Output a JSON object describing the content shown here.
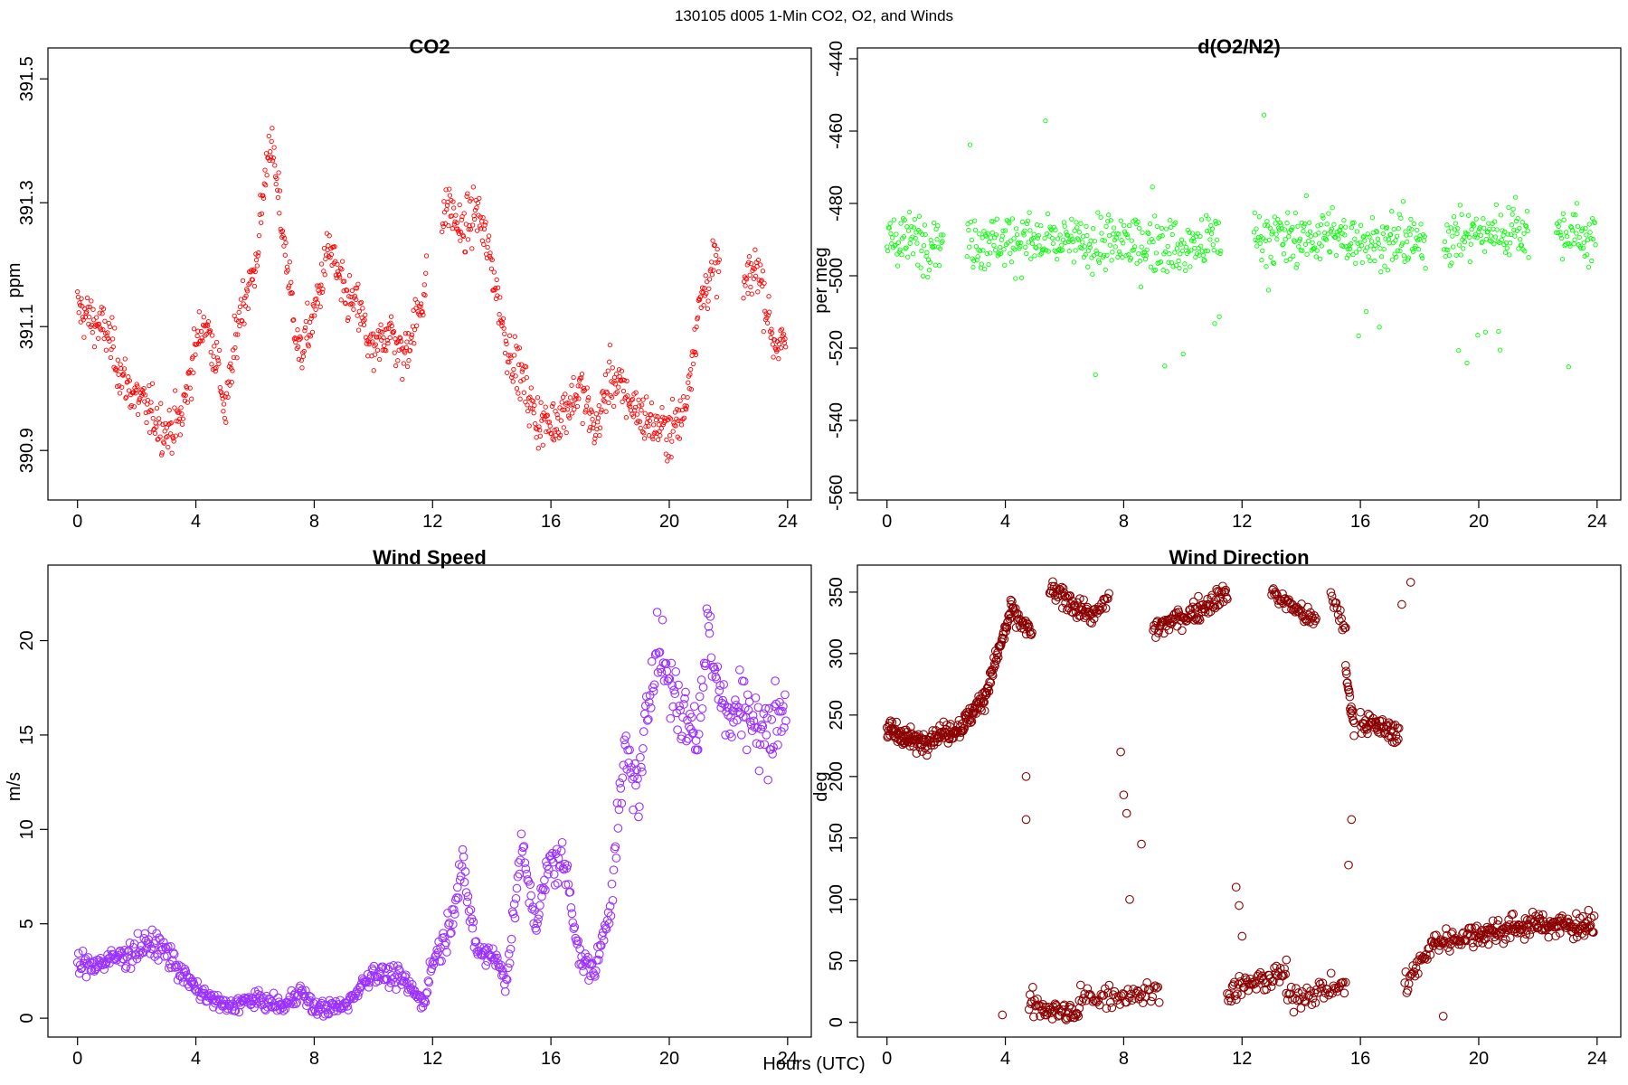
{
  "figure": {
    "suptitle": "130105   d005   1-Min CO2, O2, and Winds",
    "xlabel": "Hours (UTC)"
  },
  "chart_data": [
    {
      "id": "co2",
      "type": "scatter",
      "title": "CO2",
      "ylabel": "ppm",
      "color": "#ff0000",
      "marker_size": "small",
      "xlim": [
        -1,
        24.8
      ],
      "ylim": [
        390.82,
        391.55
      ],
      "xticks": [
        0,
        4,
        8,
        12,
        16,
        20,
        24
      ],
      "yticks": [
        390.9,
        391.1,
        391.3,
        391.5
      ],
      "ytick_labels": [
        "390.9",
        "391.1",
        "391.3",
        "391.5"
      ],
      "keypoints": [
        [
          0,
          391.13
        ],
        [
          0.5,
          391.11
        ],
        [
          1,
          391.09
        ],
        [
          1.5,
          391.02
        ],
        [
          1.9,
          390.99
        ],
        [
          2.5,
          390.96
        ],
        [
          3.0,
          390.93
        ],
        [
          3.5,
          390.95
        ],
        [
          4.0,
          391.07
        ],
        [
          4.3,
          391.11
        ],
        [
          4.7,
          391.05
        ],
        [
          5.0,
          390.96
        ],
        [
          5.5,
          391.13
        ],
        [
          6.0,
          391.19
        ],
        [
          6.5,
          391.41
        ],
        [
          7.5,
          391.05
        ],
        [
          8.0,
          391.12
        ],
        [
          8.5,
          391.23
        ],
        [
          9.0,
          391.15
        ],
        [
          9.5,
          391.13
        ],
        [
          10.0,
          391.05
        ],
        [
          10.5,
          391.1
        ],
        [
          11.0,
          391.05
        ],
        [
          11.5,
          391.12
        ],
        [
          12.5,
          391.3
        ],
        [
          13.0,
          391.25
        ],
        [
          13.5,
          391.29
        ],
        [
          14.0,
          391.2
        ],
        [
          14.5,
          391.07
        ],
        [
          15.0,
          391.02
        ],
        [
          15.5,
          390.95
        ],
        [
          16.0,
          390.94
        ],
        [
          16.5,
          390.97
        ],
        [
          17.0,
          391.0
        ],
        [
          17.5,
          390.93
        ],
        [
          18.0,
          391.02
        ],
        [
          19.0,
          390.96
        ],
        [
          19.5,
          390.94
        ],
        [
          20.0,
          390.93
        ],
        [
          20.5,
          390.96
        ],
        [
          21.0,
          391.13
        ],
        [
          21.5,
          391.2
        ],
        [
          22.5,
          391.16
        ],
        [
          23.0,
          391.2
        ],
        [
          23.5,
          391.08
        ],
        [
          24.0,
          391.06
        ]
      ],
      "gaps": [
        [
          11.8,
          12.3
        ],
        [
          21.7,
          22.5
        ]
      ]
    },
    {
      "id": "o2",
      "type": "scatter",
      "title": "d(O2/N2)",
      "ylabel": "per meg",
      "color": "#00ff00",
      "marker_size": "small",
      "xlim": [
        -1,
        24.8
      ],
      "ylim": [
        -562,
        -437
      ],
      "xticks": [
        0,
        4,
        8,
        12,
        16,
        20,
        24
      ],
      "yticks": [
        -560,
        -540,
        -520,
        -500,
        -480,
        -460,
        -440
      ],
      "ytick_labels": [
        "-560",
        "-540",
        "-520",
        "-500",
        "-480",
        "-460",
        "-440"
      ],
      "keypoints": [
        [
          0,
          -490
        ],
        [
          2,
          -490
        ],
        [
          4,
          -490
        ],
        [
          6,
          -491
        ],
        [
          8,
          -491
        ],
        [
          10,
          -492
        ],
        [
          12,
          -489
        ],
        [
          14,
          -489
        ],
        [
          16,
          -490
        ],
        [
          18,
          -491
        ],
        [
          20,
          -488
        ],
        [
          22,
          -487
        ],
        [
          24,
          -490
        ]
      ],
      "gaps": [
        [
          1.9,
          2.7
        ],
        [
          11.3,
          12.4
        ],
        [
          18.2,
          18.8
        ],
        [
          21.7,
          22.6
        ]
      ]
    },
    {
      "id": "ws",
      "type": "scatter",
      "title": "Wind Speed",
      "ylabel": "m/s",
      "color": "#9b30ff",
      "marker_size": "large",
      "xlim": [
        -1,
        24.8
      ],
      "ylim": [
        -1,
        24
      ],
      "xticks": [
        0,
        4,
        8,
        12,
        16,
        20,
        24
      ],
      "yticks": [
        0,
        5,
        10,
        15,
        20
      ],
      "ytick_labels": [
        "0",
        "5",
        "10",
        "15",
        "20"
      ],
      "keypoints": [
        [
          0,
          2.8
        ],
        [
          1,
          3.0
        ],
        [
          2,
          3.6
        ],
        [
          2.5,
          4.0
        ],
        [
          3,
          3.5
        ],
        [
          3.5,
          2.5
        ],
        [
          4,
          1.5
        ],
        [
          5,
          0.6
        ],
        [
          6,
          1.0
        ],
        [
          7,
          0.6
        ],
        [
          7.5,
          1.5
        ],
        [
          8,
          0.5
        ],
        [
          9,
          0.6
        ],
        [
          10,
          2.5
        ],
        [
          11,
          2.0
        ],
        [
          11.7,
          0.8
        ],
        [
          12,
          3.0
        ],
        [
          12.5,
          4.5
        ],
        [
          13,
          8.0
        ],
        [
          13.5,
          3.5
        ],
        [
          14,
          3.5
        ],
        [
          14.5,
          2.0
        ],
        [
          15,
          9.0
        ],
        [
          15.5,
          5.0
        ],
        [
          16,
          8.5
        ],
        [
          16.5,
          8.0
        ],
        [
          17,
          3.0
        ],
        [
          17.5,
          2.5
        ],
        [
          18,
          6.0
        ],
        [
          18.5,
          14.0
        ],
        [
          19,
          12.0
        ],
        [
          19.5,
          20.0
        ],
        [
          20,
          18.0
        ],
        [
          20.5,
          16.0
        ],
        [
          21,
          15.0
        ],
        [
          21.3,
          21.0
        ],
        [
          22,
          15.5
        ],
        [
          22.5,
          17.0
        ],
        [
          23,
          15.0
        ],
        [
          23.5,
          15.5
        ],
        [
          24,
          17.0
        ]
      ],
      "gaps": []
    },
    {
      "id": "wd",
      "type": "scatter",
      "title": "Wind Direction",
      "ylabel": "deg",
      "color": "#8b0000",
      "marker_size": "large",
      "xlim": [
        -1,
        24.8
      ],
      "ylim": [
        -12,
        372
      ],
      "xticks": [
        0,
        4,
        8,
        12,
        16,
        20,
        24
      ],
      "yticks": [
        0,
        50,
        100,
        150,
        200,
        250,
        300,
        350
      ],
      "ytick_labels": [
        "0",
        "50",
        "100",
        "150",
        "200",
        "250",
        "300",
        "350"
      ],
      "segments": [
        {
          "from": [
            0,
            238
          ],
          "to": [
            1,
            228
          ],
          "n": 60
        },
        {
          "from": [
            1,
            228
          ],
          "to": [
            2.5,
            240
          ],
          "n": 70
        },
        {
          "from": [
            2.5,
            240
          ],
          "to": [
            3.3,
            265
          ],
          "n": 45
        },
        {
          "from": [
            3.3,
            265
          ],
          "to": [
            4.2,
            335
          ],
          "n": 50
        },
        {
          "from": [
            4.2,
            335
          ],
          "to": [
            4.9,
            315
          ],
          "n": 30
        },
        {
          "from": [
            5.5,
            352
          ],
          "to": [
            7,
            330
          ],
          "n": 60
        },
        {
          "from": [
            7,
            330
          ],
          "to": [
            7.5,
            345
          ],
          "n": 15
        },
        {
          "from": [
            9,
            320
          ],
          "to": [
            10.5,
            335
          ],
          "n": 55
        },
        {
          "from": [
            10.5,
            335
          ],
          "to": [
            11.5,
            350
          ],
          "n": 40
        },
        {
          "from": [
            13,
            350
          ],
          "to": [
            14.5,
            325
          ],
          "n": 50
        },
        {
          "from": [
            15,
            348
          ],
          "to": [
            15.5,
            320
          ],
          "n": 15
        },
        {
          "from": [
            15.5,
            285
          ],
          "to": [
            15.8,
            240
          ],
          "n": 20
        },
        {
          "from": [
            16,
            245
          ],
          "to": [
            17.3,
            235
          ],
          "n": 55
        },
        {
          "from": [
            4.8,
            15
          ],
          "to": [
            6.5,
            5
          ],
          "n": 55
        },
        {
          "from": [
            6.5,
            20
          ],
          "to": [
            9.2,
            25
          ],
          "n": 60
        },
        {
          "from": [
            11.5,
            25
          ],
          "to": [
            13.5,
            40
          ],
          "n": 60
        },
        {
          "from": [
            13.5,
            20
          ],
          "to": [
            15.5,
            30
          ],
          "n": 50
        },
        {
          "from": [
            17.5,
            30
          ],
          "to": [
            18.5,
            65
          ],
          "n": 30
        },
        {
          "from": [
            18.5,
            65
          ],
          "to": [
            20,
            72
          ],
          "n": 50
        },
        {
          "from": [
            20,
            72
          ],
          "to": [
            22,
            80
          ],
          "n": 80
        },
        {
          "from": [
            22,
            80
          ],
          "to": [
            23.9,
            78
          ],
          "n": 80
        }
      ],
      "scatter": [
        [
          3.9,
          6
        ],
        [
          4.7,
          200
        ],
        [
          4.7,
          165
        ],
        [
          7.9,
          220
        ],
        [
          8.0,
          185
        ],
        [
          8.1,
          170
        ],
        [
          8.2,
          100
        ],
        [
          8.6,
          145
        ],
        [
          8.5,
          25
        ],
        [
          11.8,
          110
        ],
        [
          11.9,
          95
        ],
        [
          12.0,
          70
        ],
        [
          15.7,
          165
        ],
        [
          15.6,
          128
        ],
        [
          17.4,
          340
        ],
        [
          17.7,
          358
        ],
        [
          18.8,
          5
        ]
      ],
      "gaps": []
    }
  ]
}
